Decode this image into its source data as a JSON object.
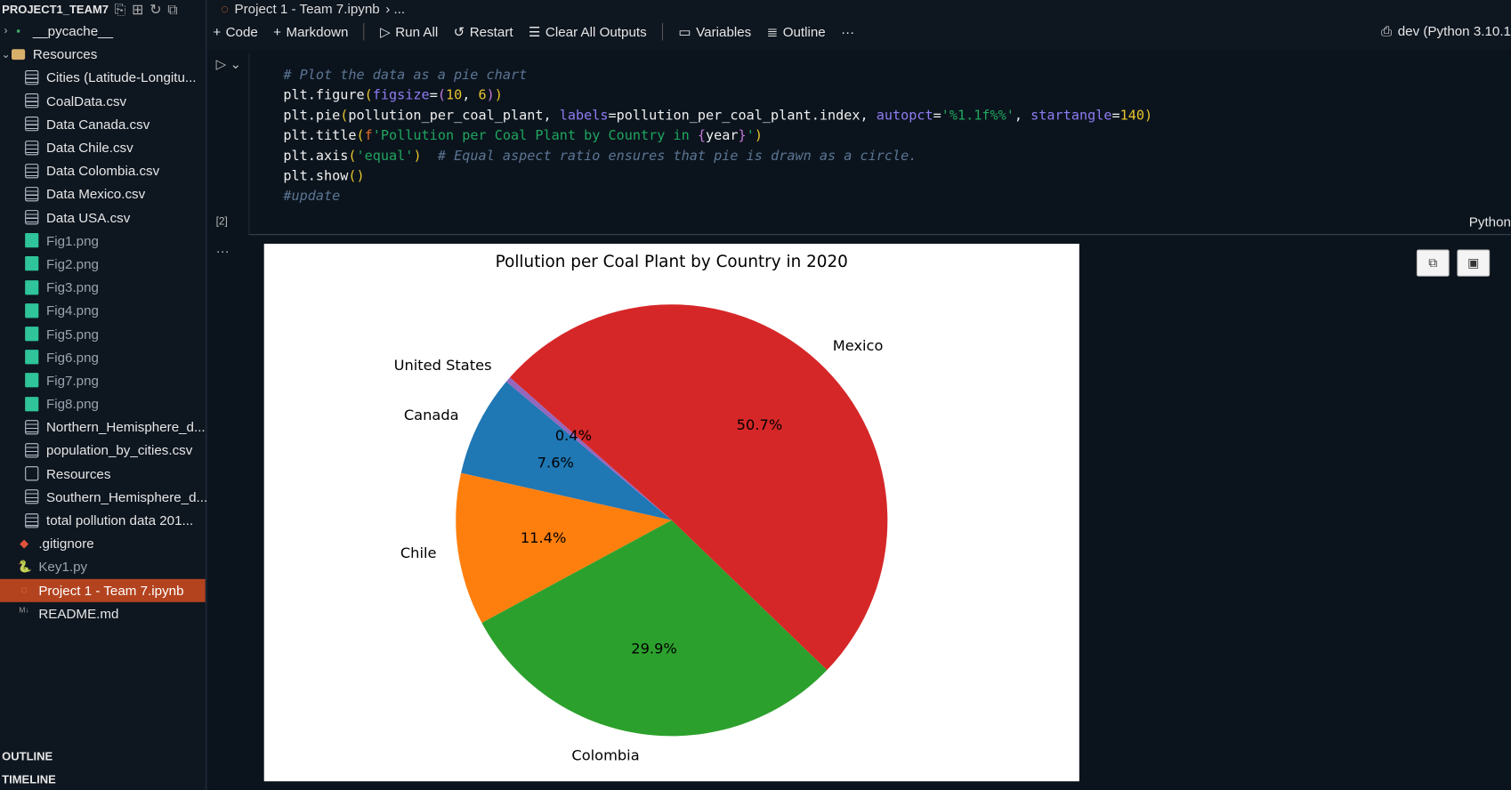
{
  "explorer": {
    "title": "PROJECT1_TEAM7",
    "items": [
      {
        "label": "__pycache__",
        "icon": "python-folder",
        "level": 0,
        "chev": "›",
        "style": ""
      },
      {
        "label": "Resources",
        "icon": "folder",
        "level": 0,
        "chev": "⌄",
        "style": ""
      },
      {
        "label": "Cities (Latitude-Longitu...",
        "icon": "doc",
        "level": 1,
        "style": ""
      },
      {
        "label": "CoalData.csv",
        "icon": "doc",
        "level": 1,
        "style": ""
      },
      {
        "label": "Data Canada.csv",
        "icon": "doc",
        "level": 1,
        "style": ""
      },
      {
        "label": "Data Chile.csv",
        "icon": "doc",
        "level": 1,
        "style": ""
      },
      {
        "label": "Data Colombia.csv",
        "icon": "doc",
        "level": 1,
        "style": ""
      },
      {
        "label": "Data Mexico.csv",
        "icon": "doc",
        "level": 1,
        "style": ""
      },
      {
        "label": "Data USA.csv",
        "icon": "doc",
        "level": 1,
        "style": ""
      },
      {
        "label": "Fig1.png",
        "icon": "img",
        "level": 1,
        "style": "dim"
      },
      {
        "label": "Fig2.png",
        "icon": "img",
        "level": 1,
        "style": "dim"
      },
      {
        "label": "Fig3.png",
        "icon": "img",
        "level": 1,
        "style": "dim"
      },
      {
        "label": "Fig4.png",
        "icon": "img",
        "level": 1,
        "style": "dim"
      },
      {
        "label": "Fig5.png",
        "icon": "img",
        "level": 1,
        "style": "dim"
      },
      {
        "label": "Fig6.png",
        "icon": "img",
        "level": 1,
        "style": "dim"
      },
      {
        "label": "Fig7.png",
        "icon": "img",
        "level": 1,
        "style": "dim"
      },
      {
        "label": "Fig8.png",
        "icon": "img",
        "level": 1,
        "style": "dim"
      },
      {
        "label": "Northern_Hemisphere_d...",
        "icon": "doc",
        "level": 1,
        "style": ""
      },
      {
        "label": "population_by_cities.csv",
        "icon": "doc",
        "level": 1,
        "style": ""
      },
      {
        "label": "Resources",
        "icon": "doc-plain",
        "level": 1,
        "style": ""
      },
      {
        "label": "Southern_Hemisphere_d...",
        "icon": "doc",
        "level": 1,
        "style": ""
      },
      {
        "label": "total pollution data 201...",
        "icon": "doc",
        "level": 1,
        "style": ""
      },
      {
        "label": ".gitignore",
        "icon": "git",
        "level": 0,
        "style": ""
      },
      {
        "label": "Key1.py",
        "icon": "python",
        "level": 0,
        "style": "dim"
      },
      {
        "label": "Project 1 - Team 7.ipynb",
        "icon": "jupyter",
        "level": 0,
        "style": "sel"
      },
      {
        "label": "README.md",
        "icon": "markdown",
        "level": 0,
        "style": ""
      }
    ],
    "outline": "OUTLINE",
    "timeline": "TIMELINE"
  },
  "breadcrumb": {
    "file": "Project 1 - Team 7.ipynb",
    "rest": "› ..."
  },
  "toolbar": {
    "code": "Code",
    "markdown": "Markdown",
    "run_all": "Run All",
    "restart": "Restart",
    "clear": "Clear All Outputs",
    "variables": "Variables",
    "outline": "Outline",
    "more": "···"
  },
  "kernel": "dev (Python 3.10.1",
  "cell": {
    "exec_count": "[2]",
    "language": "Python",
    "lines": [
      [
        [
          "# Plot the data as a pie chart",
          "cm"
        ]
      ],
      [
        [
          "plt.figure",
          "d"
        ],
        [
          "(",
          "p1"
        ],
        [
          "figsize",
          "kw"
        ],
        [
          "=",
          "d"
        ],
        [
          "(",
          "p2"
        ],
        [
          "10",
          "num"
        ],
        [
          ", ",
          "d"
        ],
        [
          "6",
          "num"
        ],
        [
          ")",
          "p2"
        ],
        [
          ")",
          "p1"
        ]
      ],
      [
        [
          "plt.pie",
          "d"
        ],
        [
          "(",
          "p1"
        ],
        [
          "pollution_per_coal_plant, ",
          "d"
        ],
        [
          "labels",
          "kw"
        ],
        [
          "=pollution_per_coal_plant.index, ",
          "d"
        ],
        [
          "autopct",
          "kw"
        ],
        [
          "=",
          "d"
        ],
        [
          "'%1.1f%%'",
          "str"
        ],
        [
          ", ",
          "d"
        ],
        [
          "startangle",
          "kw"
        ],
        [
          "=",
          "d"
        ],
        [
          "140",
          "num"
        ],
        [
          ")",
          "p1"
        ]
      ],
      [
        [
          "plt.title",
          "d"
        ],
        [
          "(",
          "p1"
        ],
        [
          "f",
          "f"
        ],
        [
          "'Pollution per Coal Plant by Country in ",
          "str"
        ],
        [
          "{",
          "p2"
        ],
        [
          "year",
          "d"
        ],
        [
          "}",
          "p2"
        ],
        [
          "'",
          "str"
        ],
        [
          ")",
          "p1"
        ]
      ],
      [
        [
          "plt.axis",
          "d"
        ],
        [
          "(",
          "p1"
        ],
        [
          "'equal'",
          "str"
        ],
        [
          ")",
          "p1"
        ],
        [
          "  # Equal aspect ratio ensures that pie is drawn as a circle.",
          "cm"
        ]
      ],
      [
        [
          "plt.show",
          "d"
        ],
        [
          "(",
          "p1"
        ],
        [
          ")",
          "p1"
        ]
      ],
      [
        [
          "#update",
          "cm"
        ]
      ]
    ]
  },
  "chart_data": {
    "type": "pie",
    "title": "Pollution per Coal Plant by Country in 2020",
    "startangle": 140,
    "categories": [
      "Canada",
      "Chile",
      "Colombia",
      "Mexico",
      "United States"
    ],
    "values": [
      7.6,
      11.4,
      29.9,
      50.7,
      0.4
    ],
    "value_labels": [
      "7.6%",
      "11.4%",
      "29.9%",
      "50.7%",
      "0.4%"
    ],
    "colors": [
      "#1f77b4",
      "#ff7f0e",
      "#2ca02c",
      "#d62728",
      "#9467bd"
    ]
  }
}
